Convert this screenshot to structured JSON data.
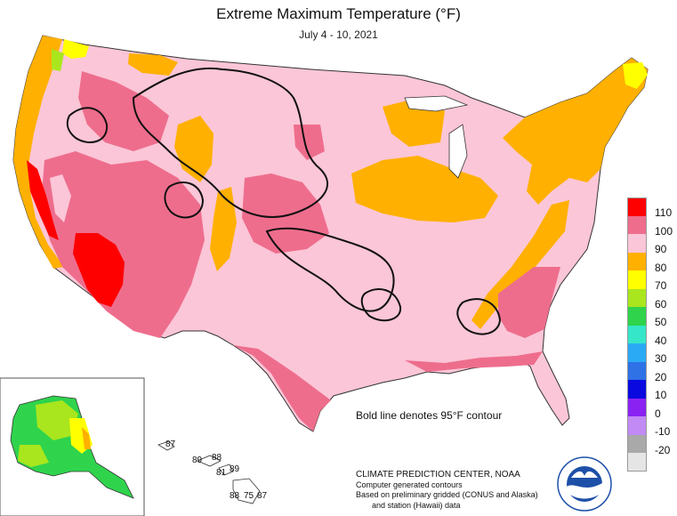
{
  "header": {
    "title": "Extreme Maximum Temperature (°F)",
    "date_range": "July 4 - 10, 2021"
  },
  "legend": {
    "items": [
      {
        "label": "110",
        "color": "#ff0000"
      },
      {
        "label": "100",
        "color": "#ee6d8d"
      },
      {
        "label": "90",
        "color": "#fbc6d7"
      },
      {
        "label": "80",
        "color": "#ffb000"
      },
      {
        "label": "70",
        "color": "#ffff00"
      },
      {
        "label": "60",
        "color": "#a9e61e"
      },
      {
        "label": "50",
        "color": "#2fd44c"
      },
      {
        "label": "40",
        "color": "#35e6c9"
      },
      {
        "label": "30",
        "color": "#2aaaf5"
      },
      {
        "label": "20",
        "color": "#2e72e6"
      },
      {
        "label": "10",
        "color": "#0a0ae0"
      },
      {
        "label": "0",
        "color": "#8a22f2"
      },
      {
        "label": "-10",
        "color": "#c28af5"
      },
      {
        "label": "-20",
        "color": "#a9a9a9"
      },
      {
        "label": "",
        "color": "#e5e5e5"
      }
    ]
  },
  "contour_note": "Bold line denotes 95°F contour",
  "hawaii_values": [
    "87",
    "89",
    "88",
    "81",
    "89",
    "88",
    "75",
    "87"
  ],
  "credit": {
    "line1": "CLIMATE PREDICTION CENTER, NOAA",
    "line2": "Computer generated contours",
    "line3": "Based on preliminary gridded (CONUS and Alaska)",
    "line4": "and station (Hawaii) data"
  },
  "logo": {
    "text": "NOAA",
    "color": "#1d4fa8"
  }
}
